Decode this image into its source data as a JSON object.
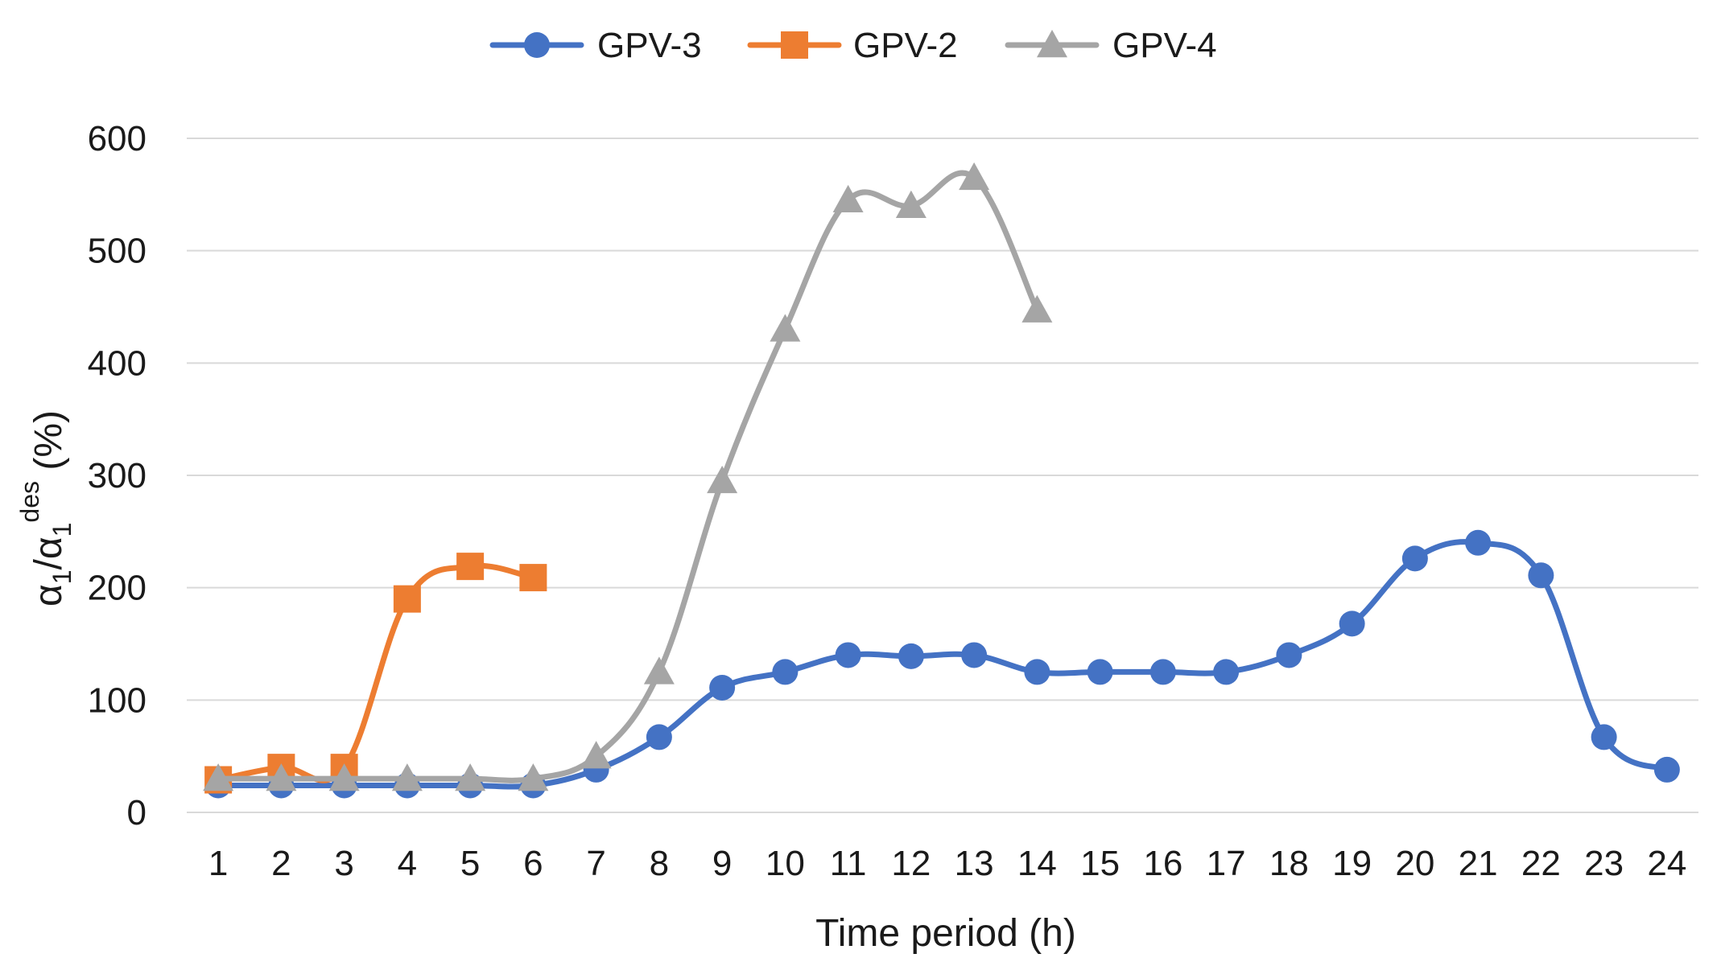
{
  "chart_data": {
    "type": "line",
    "title": "",
    "xlabel": "Time period (h)",
    "ylabel": {
      "base": "α",
      "sub": "1",
      "slash": "/",
      "base2": "α",
      "sub2": "1",
      "sup2": "des",
      "suffix": " (%)"
    },
    "ylim": [
      0,
      600
    ],
    "yticks": [
      "0",
      "100",
      "200",
      "300",
      "400",
      "500",
      "600"
    ],
    "categories": [
      "1",
      "2",
      "3",
      "4",
      "5",
      "6",
      "7",
      "8",
      "9",
      "10",
      "11",
      "12",
      "13",
      "14",
      "15",
      "16",
      "17",
      "18",
      "19",
      "20",
      "21",
      "22",
      "23",
      "24"
    ],
    "legend_position": "top-center",
    "grid": true,
    "series": [
      {
        "name": "GPV-3",
        "color": "#4472C4",
        "marker": "circle",
        "x": [
          1,
          2,
          3,
          4,
          5,
          6,
          7,
          8,
          9,
          10,
          11,
          12,
          13,
          14,
          15,
          16,
          17,
          18,
          19,
          20,
          21,
          22,
          23,
          24
        ],
        "values": [
          24,
          24,
          24,
          24,
          24,
          24,
          38,
          67,
          111,
          125,
          140,
          139,
          140,
          125,
          125,
          125,
          125,
          140,
          168,
          226,
          240,
          211,
          67,
          38
        ]
      },
      {
        "name": "GPV-2",
        "color": "#ED7D31",
        "marker": "square",
        "x": [
          1,
          2,
          3,
          4,
          5,
          6
        ],
        "values": [
          29,
          40,
          40,
          190,
          219,
          209
        ]
      },
      {
        "name": "GPV-4",
        "color": "#A5A5A5",
        "marker": "triangle",
        "x": [
          1,
          2,
          3,
          4,
          5,
          6,
          7,
          8,
          9,
          10,
          11,
          12,
          13,
          14
        ],
        "values": [
          30,
          30,
          30,
          30,
          30,
          30,
          50,
          125,
          295,
          430,
          545,
          540,
          565,
          447
        ]
      }
    ]
  }
}
